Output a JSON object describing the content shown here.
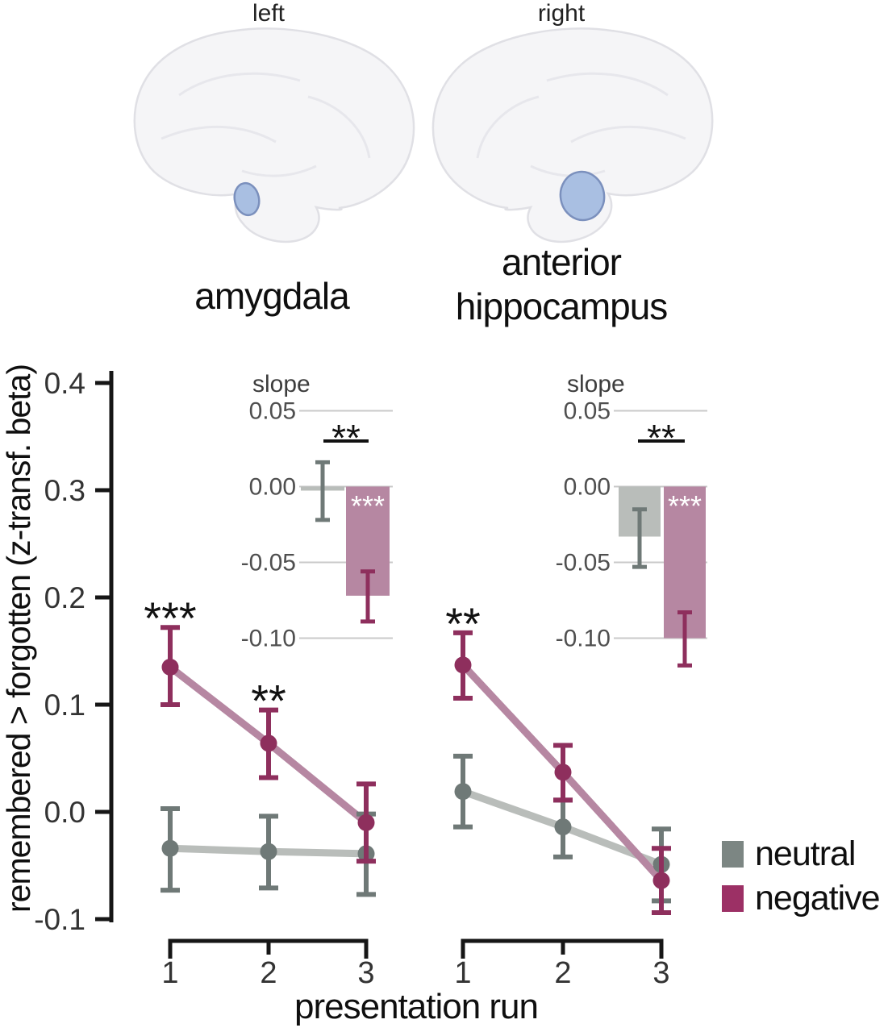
{
  "figure": {
    "brain_labels": {
      "left": "left",
      "right": "right"
    },
    "panel_titles": {
      "left": "amygdala",
      "right": "anterior\nhippocampus"
    },
    "y_axis_label": "remembered > forgotten (z-transf. beta)",
    "x_axis_label": "presentation run"
  },
  "legend": [
    {
      "label": "neutral",
      "color": "#7c8683"
    },
    {
      "label": "negative",
      "color": "#9c3065"
    }
  ],
  "colors": {
    "neutral_dark": "#6f7977",
    "neutral_light": "#b9bdba",
    "negative_dark": "#8e2f5d",
    "negative_light": "#b687a2",
    "axis": "#161616",
    "tick_label": "#333333",
    "inset_tick_label": "#4f4f4f",
    "inset_title": "#3d3d3d",
    "grid": "#c9c9c9",
    "star": "#111111",
    "bar_star": "#ffffff",
    "brain_fill": "#f5f5f7",
    "brain_stroke": "#e0e0e5",
    "sulci": "#e7e7ec",
    "roi_fill": "#a9bfe2",
    "roi_stroke": "#7b90bd"
  },
  "chart_data": [
    {
      "type": "line",
      "region": "amygdala",
      "hemisphere": "left",
      "x": [
        1,
        2,
        3
      ],
      "x_tick_labels": [
        "1",
        "2",
        "3"
      ],
      "xlabel": "presentation run",
      "ylabel": "remembered > forgotten (z-transf. beta)",
      "ylim": [
        -0.1,
        0.4
      ],
      "yticks": {
        "labels": [
          "0.4",
          "0.3",
          "0.2",
          "0.1",
          "0.0",
          "-0.1"
        ],
        "values": [
          0.4,
          0.3,
          0.2,
          0.1,
          0.0,
          -0.1
        ]
      },
      "series": [
        {
          "name": "neutral",
          "values": [
            -0.034,
            -0.037,
            -0.039
          ],
          "ci_low": [
            -0.073,
            -0.071,
            -0.077
          ],
          "ci_high": [
            0.003,
            -0.004,
            -0.002
          ]
        },
        {
          "name": "negative",
          "values": [
            0.135,
            0.064,
            -0.01
          ],
          "ci_low": [
            0.1,
            0.032,
            -0.046
          ],
          "ci_high": [
            0.172,
            0.095,
            0.026
          ]
        }
      ],
      "annotations": [
        {
          "run": 1,
          "text": "***"
        },
        {
          "run": 2,
          "text": "**"
        }
      ]
    },
    {
      "type": "bar",
      "region": "amygdala",
      "hemisphere": "left",
      "title": "slope",
      "categories": [
        "neutral",
        "negative"
      ],
      "values": [
        -0.002,
        -0.072
      ],
      "ci_low": [
        -0.022,
        -0.089
      ],
      "ci_high": [
        0.016,
        -0.056
      ],
      "yticks": {
        "labels": [
          "0.05",
          "0.00",
          "-0.05",
          "-0.10"
        ],
        "values": [
          0.05,
          0.0,
          -0.05,
          -0.1
        ]
      },
      "ylim": [
        -0.125,
        0.06
      ],
      "significance_between": "**",
      "negative_bar_label": "***"
    },
    {
      "type": "line",
      "region": "anterior hippocampus",
      "hemisphere": "right",
      "x": [
        1,
        2,
        3
      ],
      "x_tick_labels": [
        "1",
        "2",
        "3"
      ],
      "xlabel": "presentation run",
      "ylabel": "remembered > forgotten (z-transf. beta)",
      "ylim": [
        -0.1,
        0.4
      ],
      "yticks": {
        "labels": [
          "0.4",
          "0.3",
          "0.2",
          "0.1",
          "0.0",
          "-0.1"
        ],
        "values": [
          0.4,
          0.3,
          0.2,
          0.1,
          0.0,
          -0.1
        ]
      },
      "series": [
        {
          "name": "neutral",
          "values": [
            0.019,
            -0.014,
            -0.049
          ],
          "ci_low": [
            -0.014,
            -0.042,
            -0.083
          ],
          "ci_high": [
            0.052,
            0.011,
            -0.016
          ]
        },
        {
          "name": "negative",
          "values": [
            0.137,
            0.037,
            -0.064
          ],
          "ci_low": [
            0.106,
            0.011,
            -0.094
          ],
          "ci_high": [
            0.167,
            0.062,
            -0.034
          ]
        }
      ],
      "annotations": [
        {
          "run": 1,
          "text": "**"
        }
      ]
    },
    {
      "type": "bar",
      "region": "anterior hippocampus",
      "hemisphere": "right",
      "title": "slope",
      "categories": [
        "neutral",
        "negative"
      ],
      "values": [
        -0.033,
        -0.1
      ],
      "ci_low": [
        -0.053,
        -0.118
      ],
      "ci_high": [
        -0.015,
        -0.083
      ],
      "yticks": {
        "labels": [
          "0.05",
          "0.00",
          "-0.05",
          "-0.10"
        ],
        "values": [
          0.05,
          0.0,
          -0.05,
          -0.1
        ]
      },
      "ylim": [
        -0.125,
        0.06
      ],
      "significance_between": "**",
      "negative_bar_label": "***"
    }
  ]
}
